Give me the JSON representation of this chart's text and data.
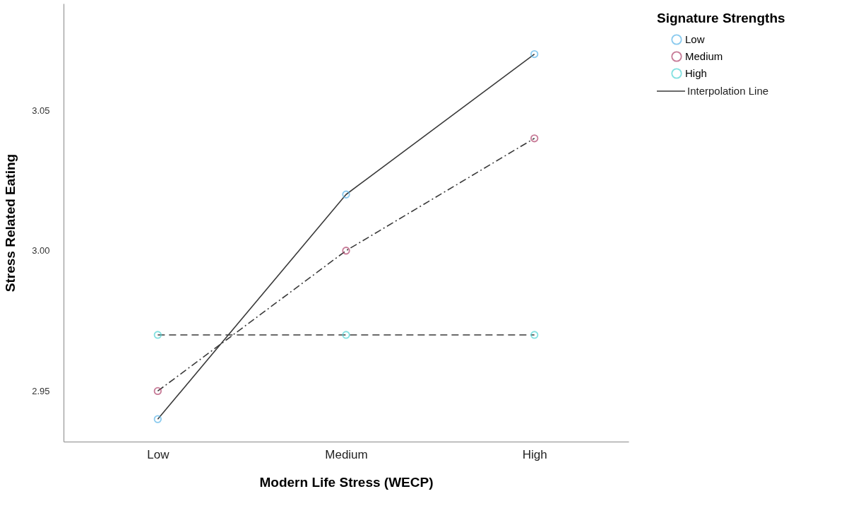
{
  "chart_data": {
    "type": "line",
    "xlabel": "Modern Life Stress (WECP)",
    "ylabel": "Stress Related Eating",
    "legend_title": "Signature Strengths",
    "categories": [
      "Low",
      "Medium",
      "High"
    ],
    "series": [
      {
        "name": "Low",
        "color": "#5ab4e8",
        "line_style": "solid",
        "values": [
          2.94,
          3.02,
          3.07
        ]
      },
      {
        "name": "Medium",
        "color": "#b0446c",
        "line_style": "dashdot",
        "values": [
          2.95,
          3.0,
          3.04
        ]
      },
      {
        "name": "High",
        "color": "#4fd4d4",
        "line_style": "dashed",
        "values": [
          2.97,
          2.97,
          2.97
        ]
      }
    ],
    "ylim": [
      2.932,
      3.088
    ],
    "yticks": [
      2.95,
      {
        "value": 3.0,
        "label": "3.00"
      },
      3.05
    ],
    "grid": false,
    "legend": "top right",
    "marker": "circle",
    "annotations": [
      "Interpolation Line"
    ]
  }
}
